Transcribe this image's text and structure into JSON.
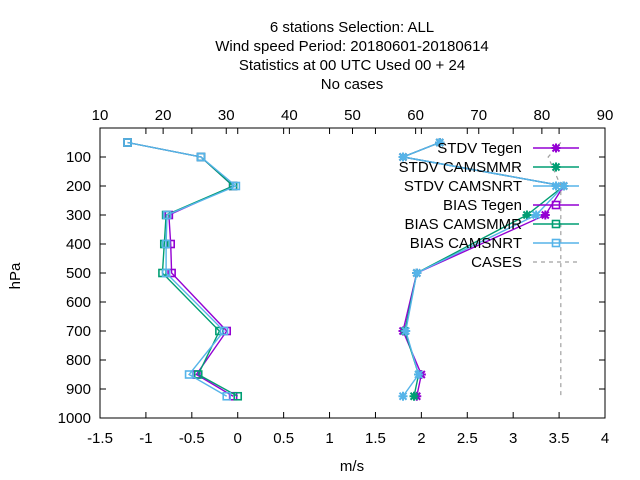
{
  "chart_data": {
    "type": "line",
    "title": [
      "6 stations Selection: ALL",
      "Wind speed  Period: 20180601-20180614",
      "Statistics at 00 UTC  Used  00 + 24",
      "No cases"
    ],
    "xlabel": "m/s",
    "ylabel": "hPa",
    "xlim": [
      -1.5,
      4
    ],
    "x2lim": [
      10,
      90
    ],
    "ylim": [
      1000,
      0
    ],
    "x_ticks": [
      -1.5,
      -1,
      -0.5,
      0,
      0.5,
      1,
      1.5,
      2,
      2.5,
      3,
      3.5,
      4
    ],
    "x_tick_labels": [
      "-1.5",
      "-1",
      "-0.5",
      "0",
      "0.5",
      "1",
      "1.5",
      "2",
      "2.5",
      "3",
      "3.5",
      "4"
    ],
    "x2_ticks": [
      10,
      20,
      30,
      40,
      50,
      60,
      70,
      80,
      90
    ],
    "x2_tick_labels": [
      "10",
      "20",
      "30",
      "40",
      "50",
      "60",
      "70",
      "80",
      "90"
    ],
    "y_ticks": [
      100,
      200,
      300,
      400,
      500,
      600,
      700,
      800,
      900,
      1000
    ],
    "y_tick_labels": [
      "100",
      "200",
      "300",
      "400",
      "500",
      "600",
      "700",
      "800",
      "900",
      "1000"
    ],
    "legend_position": "top-right",
    "grid": false,
    "series": [
      {
        "name": "STDV Tegen",
        "color": "#9400d3",
        "marker": "x",
        "dash": "",
        "points": [
          [
            2.2,
            50
          ],
          [
            1.8,
            100
          ],
          [
            3.55,
            200
          ],
          [
            3.35,
            300
          ],
          [
            1.95,
            500
          ],
          [
            1.8,
            700
          ],
          [
            2.0,
            850
          ],
          [
            1.95,
            925
          ]
        ]
      },
      {
        "name": "STDV CAMSMMR",
        "color": "#009e73",
        "marker": "x",
        "dash": "",
        "points": [
          [
            2.2,
            50
          ],
          [
            1.8,
            100
          ],
          [
            3.55,
            200
          ],
          [
            3.15,
            300
          ],
          [
            1.95,
            500
          ],
          [
            1.82,
            700
          ],
          [
            1.97,
            850
          ],
          [
            1.92,
            925
          ]
        ]
      },
      {
        "name": "STDV CAMSNRT",
        "color": "#56b4e9",
        "marker": "x",
        "dash": "",
        "points": [
          [
            2.2,
            50
          ],
          [
            1.8,
            100
          ],
          [
            3.55,
            200
          ],
          [
            3.25,
            300
          ],
          [
            1.95,
            500
          ],
          [
            1.83,
            700
          ],
          [
            1.97,
            850
          ],
          [
            1.8,
            925
          ]
        ]
      },
      {
        "name": "BIAS Tegen",
        "color": "#9400d3",
        "marker": "sq",
        "dash": "",
        "points": [
          [
            -1.2,
            50
          ],
          [
            -0.4,
            100
          ],
          [
            -0.05,
            200
          ],
          [
            -0.75,
            300
          ],
          [
            -0.73,
            400
          ],
          [
            -0.72,
            500
          ],
          [
            -0.12,
            700
          ],
          [
            -0.45,
            850
          ],
          [
            -0.05,
            925
          ]
        ]
      },
      {
        "name": "BIAS CAMSMMR",
        "color": "#009e73",
        "marker": "sq",
        "dash": "",
        "points": [
          [
            -1.2,
            50
          ],
          [
            -0.4,
            100
          ],
          [
            -0.05,
            200
          ],
          [
            -0.78,
            300
          ],
          [
            -0.8,
            400
          ],
          [
            -0.82,
            500
          ],
          [
            -0.2,
            700
          ],
          [
            -0.43,
            850
          ],
          [
            0.0,
            925
          ]
        ]
      },
      {
        "name": "BIAS CAMSNRT",
        "color": "#56b4e9",
        "marker": "sq",
        "dash": "",
        "points": [
          [
            -1.2,
            50
          ],
          [
            -0.4,
            100
          ],
          [
            -0.02,
            200
          ],
          [
            -0.77,
            300
          ],
          [
            -0.78,
            400
          ],
          [
            -0.78,
            500
          ],
          [
            -0.15,
            700
          ],
          [
            -0.53,
            850
          ],
          [
            -0.12,
            925
          ]
        ]
      },
      {
        "name": "CASES",
        "color": "#a0a0a0",
        "marker": "none",
        "dash": "4,4",
        "axis": "x2",
        "points": [
          [
            83,
            50
          ],
          [
            81,
            100
          ],
          [
            83,
            200
          ],
          [
            83,
            300
          ],
          [
            83,
            500
          ],
          [
            83,
            700
          ],
          [
            83,
            850
          ],
          [
            83,
            925
          ]
        ]
      }
    ]
  }
}
